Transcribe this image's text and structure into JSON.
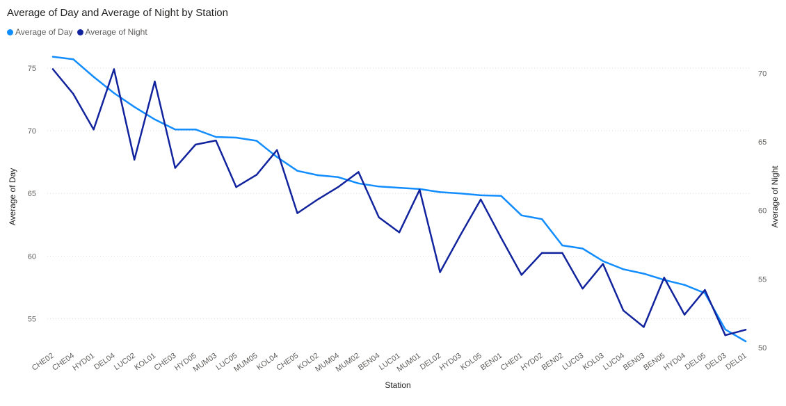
{
  "chart_data": {
    "type": "line",
    "title": "Average of Day and Average of Night by Station",
    "xlabel": "Station",
    "ylabel": "Average of Day",
    "y2label": "Average of Night",
    "categories": [
      "CHE02",
      "CHE04",
      "HYD01",
      "DEL04",
      "LUC02",
      "KOL01",
      "CHE03",
      "HYD05",
      "MUM03",
      "LUC05",
      "MUM05",
      "KOL04",
      "CHE05",
      "KOL02",
      "MUM04",
      "MUM02",
      "BEN04",
      "LUC01",
      "MUM01",
      "DEL02",
      "HYD03",
      "KOL05",
      "BEN01",
      "CHE01",
      "HYD02",
      "BEN02",
      "LUC03",
      "KOL03",
      "LUC04",
      "BEN03",
      "BEN05",
      "HYD04",
      "DEL05",
      "DEL03",
      "DEL01"
    ],
    "series": [
      {
        "name": "Average of Day",
        "axis": "left",
        "color": "#118DFF",
        "values": [
          75.9,
          75.7,
          74.3,
          73.0,
          71.9,
          70.9,
          70.1,
          70.1,
          69.5,
          69.45,
          69.2,
          67.9,
          66.8,
          66.45,
          66.3,
          65.8,
          65.55,
          65.45,
          65.35,
          65.1,
          65.0,
          64.85,
          64.8,
          63.25,
          62.95,
          60.85,
          60.6,
          59.6,
          58.95,
          58.6,
          58.1,
          57.7,
          57.05,
          54.15,
          53.2
        ]
      },
      {
        "name": "Average of Night",
        "axis": "right",
        "color": "#12239E",
        "values": [
          70.3,
          68.5,
          65.9,
          70.3,
          63.7,
          69.4,
          63.1,
          64.8,
          65.1,
          61.7,
          62.6,
          64.4,
          59.8,
          60.8,
          61.7,
          62.8,
          59.5,
          58.4,
          61.5,
          55.5,
          58.2,
          60.8,
          58.0,
          55.3,
          56.9,
          56.9,
          54.3,
          56.1,
          52.7,
          51.5,
          55.1,
          52.4,
          54.2,
          50.9,
          51.3
        ]
      }
    ],
    "ylim": [
      52.7,
      77.1
    ],
    "y2lim": [
      50,
      72.3
    ],
    "yticks": [
      "55",
      "60",
      "65",
      "70",
      "75"
    ],
    "y2ticks": [
      "50",
      "55",
      "60",
      "65",
      "70"
    ],
    "grid": true,
    "legend_position": "top-left"
  }
}
